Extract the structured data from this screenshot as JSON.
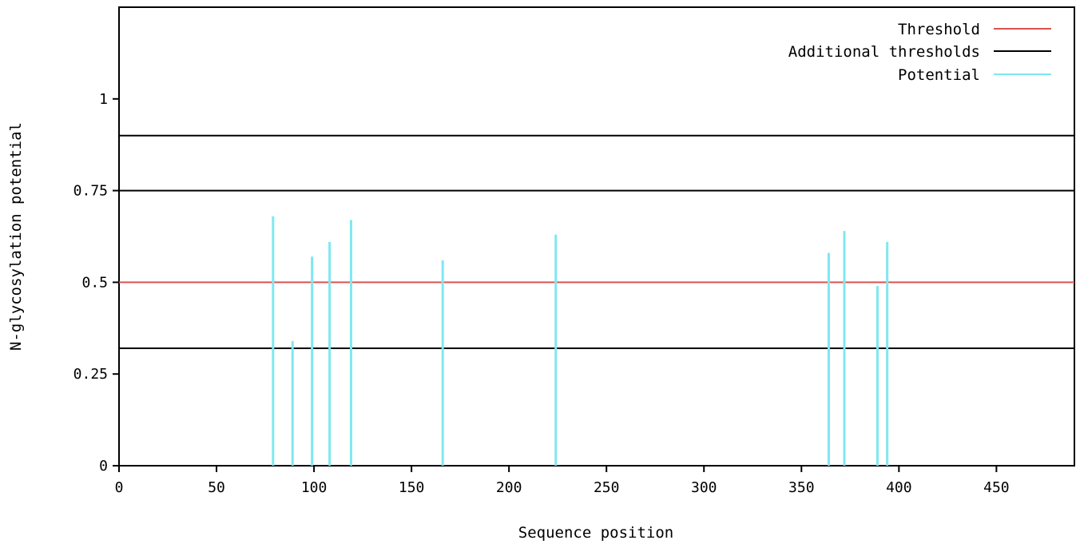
{
  "colors": {
    "threshold": "#d9534f",
    "additional": "#000000",
    "potential": "#7ee8f0",
    "axis": "#000000"
  },
  "chart_data": {
    "type": "bar",
    "title": "",
    "xlabel": "Sequence position",
    "ylabel": "N-glycosylation potential",
    "xlim": [
      0,
      490
    ],
    "ylim": [
      0,
      1.25
    ],
    "xticks": [
      0,
      50,
      100,
      150,
      200,
      250,
      300,
      350,
      400,
      450
    ],
    "yticks": [
      0,
      0.25,
      0.5,
      0.75,
      1
    ],
    "ytick_labels": [
      "0",
      "0.25",
      "0.5",
      "0.75",
      "1"
    ],
    "grid": false,
    "legend": {
      "placement": "top-right",
      "entries": [
        {
          "label": "Threshold",
          "key": "threshold"
        },
        {
          "label": "Additional thresholds",
          "key": "additional"
        },
        {
          "label": "Potential",
          "key": "potential"
        }
      ]
    },
    "threshold": 0.5,
    "additional_thresholds": [
      0.32,
      0.75,
      0.9
    ],
    "series": [
      {
        "key": "potential",
        "points": [
          {
            "x": 79,
            "y": 0.68
          },
          {
            "x": 89,
            "y": 0.34
          },
          {
            "x": 99,
            "y": 0.57
          },
          {
            "x": 108,
            "y": 0.61
          },
          {
            "x": 119,
            "y": 0.67
          },
          {
            "x": 166,
            "y": 0.56
          },
          {
            "x": 224,
            "y": 0.63
          },
          {
            "x": 364,
            "y": 0.58
          },
          {
            "x": 372,
            "y": 0.64
          },
          {
            "x": 389,
            "y": 0.49
          },
          {
            "x": 394,
            "y": 0.61
          }
        ]
      }
    ]
  }
}
